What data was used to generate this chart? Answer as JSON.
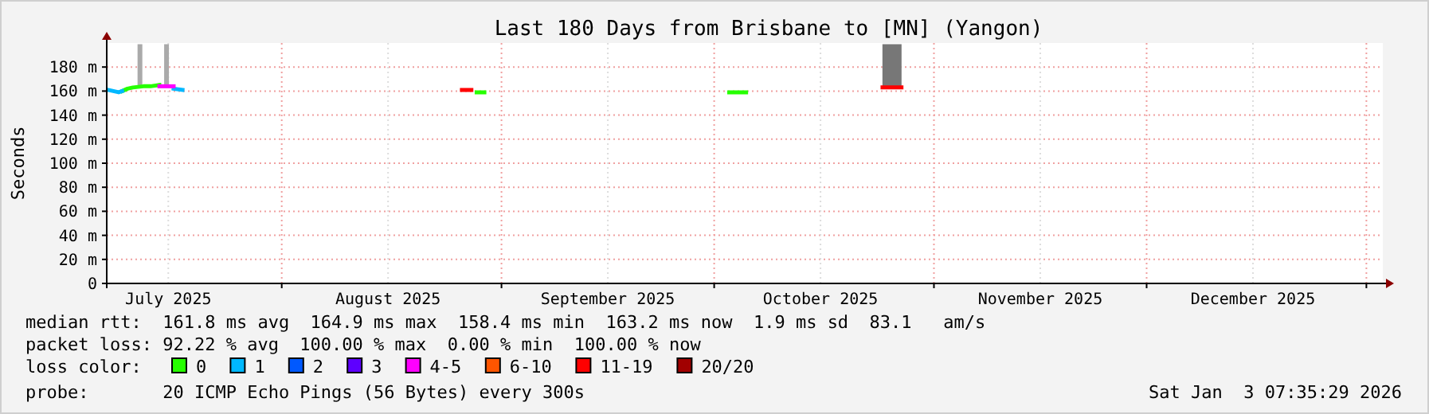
{
  "chart_data": {
    "type": "line",
    "title": "Last 180 Days from Brisbane to [MN] (Yangon)",
    "ylabel": "Seconds",
    "xlim": [
      "2025-07-07T07:35",
      "2026-01-03T07:35"
    ],
    "xticks": [
      {
        "value": "2025-07-16",
        "label": "July 2025"
      },
      {
        "value": "2025-08-01",
        "label": null
      },
      {
        "value": "2025-08-16",
        "label": "August 2025"
      },
      {
        "value": "2025-09-01",
        "label": null
      },
      {
        "value": "2025-09-16",
        "label": "September 2025"
      },
      {
        "value": "2025-10-01",
        "label": null
      },
      {
        "value": "2025-10-16",
        "label": "October 2025"
      },
      {
        "value": "2025-11-01",
        "label": null
      },
      {
        "value": "2025-11-16",
        "label": "November 2025"
      },
      {
        "value": "2025-12-01",
        "label": null
      },
      {
        "value": "2025-12-16",
        "label": "December 2025"
      },
      {
        "value": "2026-01-01",
        "label": null
      }
    ],
    "ylim": [
      0,
      200
    ],
    "yticks": [
      0,
      {
        "value": 20,
        "label": "20 m"
      },
      {
        "value": 40,
        "label": "40 m"
      },
      {
        "value": 60,
        "label": "60 m"
      },
      {
        "value": 80,
        "label": "80 m"
      },
      {
        "value": 100,
        "label": "100 m"
      },
      {
        "value": 120,
        "label": "120 m"
      },
      {
        "value": 140,
        "label": "140 m"
      },
      {
        "value": 160,
        "label": "160 m"
      },
      {
        "value": 180,
        "label": "180 m"
      }
    ],
    "grid": true,
    "legend": "bottom",
    "legend_title": "loss color:",
    "series": [
      {
        "type": "bar",
        "color": "#aaaaaa",
        "x": [
          "2025-07-12T00:00",
          "2025-07-15T18:00"
        ],
        "base": [
          164,
          165
        ],
        "values": [
          35,
          34
        ]
      },
      {
        "type": "bar",
        "color": "#777777",
        "x": [
          "2025-10-26T02:00"
        ],
        "base": [
          164
        ],
        "values": [
          35
        ]
      },
      {
        "name": "0",
        "color": "#26ff00",
        "x": [
          "2025-07-09T12:00",
          "2025-07-10T06:00",
          "2025-07-11T00:00",
          "2025-07-12T12:00",
          "2025-07-13T12:00",
          "2025-07-14T18:00",
          "2025-08-20T00:00",
          "2025-08-28T12:00",
          "2025-08-29T14:00",
          "2025-09-20T00:00",
          "2025-10-03T03:00",
          "2025-10-05T12:00"
        ],
        "values": [
          160,
          162,
          163,
          164,
          164,
          165,
          null,
          159,
          159,
          null,
          159,
          159
        ]
      },
      {
        "name": "1",
        "color": "#00b8ff",
        "x": [
          "2025-07-07T12:00",
          "2025-07-09T00:00",
          "2025-07-09T12:00",
          "2025-07-13T00:00",
          "2025-07-16T18:00",
          "2025-07-18T00:00"
        ],
        "values": [
          161,
          159,
          160,
          null,
          162,
          161
        ]
      },
      {
        "name": "2",
        "color": "#0059ff"
      },
      {
        "name": "3",
        "color": "#5e00ff"
      },
      {
        "name": "4-5",
        "color": "#ff00ff",
        "x": [
          "2025-07-14T18:00",
          "2025-07-16T18:00"
        ],
        "values": [
          164,
          164
        ]
      },
      {
        "name": "6-10",
        "color": "#ff5500"
      },
      {
        "name": "11-19",
        "color": "#ff0000",
        "x": [
          "2025-08-26T10:00",
          "2025-08-27T18:00",
          "2025-09-20T00:00",
          "2025-10-24T18:00",
          "2025-10-27T10:00"
        ],
        "values": [
          161,
          161,
          null,
          163,
          163
        ]
      },
      {
        "name": "20/20",
        "color": "#a10000"
      }
    ],
    "annotations": [
      "median rtt:  161.8 ms avg  164.9 ms max  158.4 ms min  163.2 ms now  1.9 ms sd  83.1   am/s",
      "packet loss: 92.22 % avg  100.00 % max  0.00 % min  100.00 % now",
      "probe:       20 ICMP Echo Pings (56 Bytes) every 300s",
      "Sat Jan  3 07:35:29 2026"
    ]
  }
}
